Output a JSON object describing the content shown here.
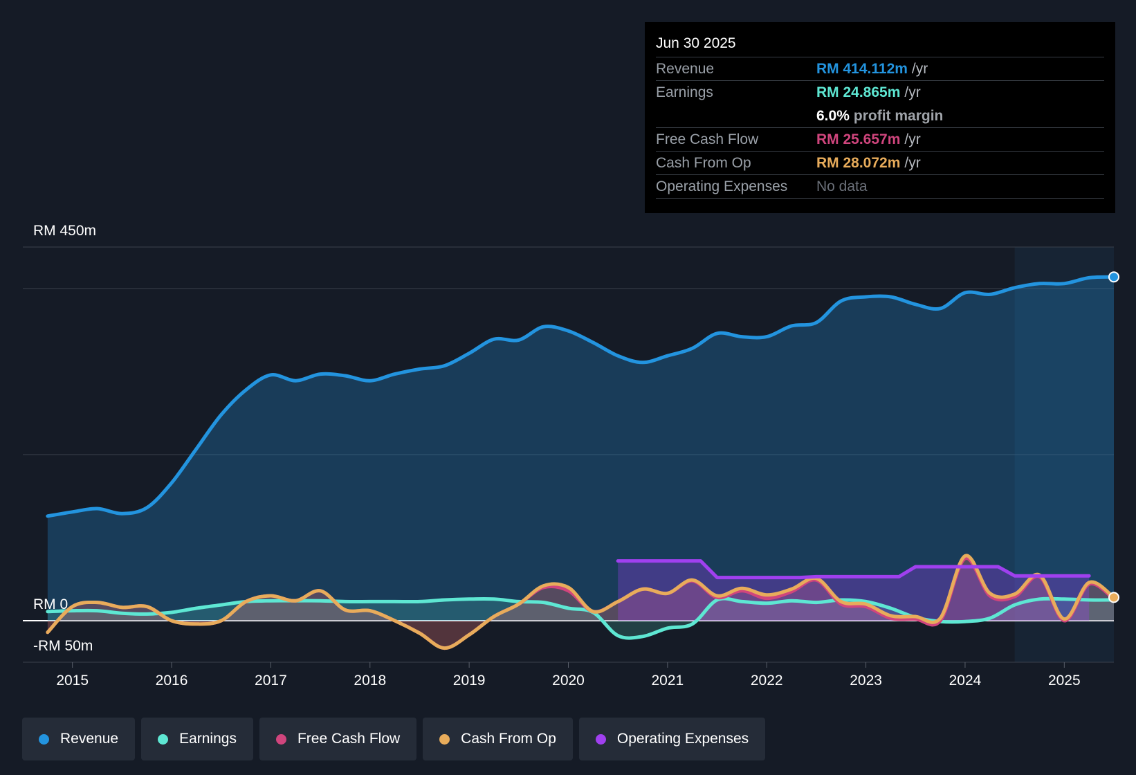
{
  "colors": {
    "background": "#151b26",
    "revenue": "#2394df",
    "earnings": "#5ee7d3",
    "free_cash_flow": "#d0457d",
    "cash_from_op": "#e8ac5b",
    "operating_expenses": "#a040ef",
    "grid": "#3a404c"
  },
  "tooltip": {
    "date": "Jun 30 2025",
    "rows": [
      {
        "label": "Revenue",
        "value": "RM 414.112m",
        "unit": "/yr",
        "color": "#2394df"
      },
      {
        "label": "Earnings",
        "value": "RM 24.865m",
        "unit": "/yr",
        "color": "#5ee7d3"
      },
      {
        "label": "",
        "value": "6.0%",
        "unit": "profit margin",
        "color": "#ffffff"
      },
      {
        "label": "Free Cash Flow",
        "value": "RM 25.657m",
        "unit": "/yr",
        "color": "#d0457d"
      },
      {
        "label": "Cash From Op",
        "value": "RM 28.072m",
        "unit": "/yr",
        "color": "#e8ac5b"
      },
      {
        "label": "Operating Expenses",
        "value": "No data",
        "unit": "",
        "color": "#6b7079"
      }
    ]
  },
  "legend": [
    {
      "label": "Revenue",
      "color": "#2394df"
    },
    {
      "label": "Earnings",
      "color": "#5ee7d3"
    },
    {
      "label": "Free Cash Flow",
      "color": "#d0457d"
    },
    {
      "label": "Cash From Op",
      "color": "#e8ac5b"
    },
    {
      "label": "Operating Expenses",
      "color": "#a040ef"
    }
  ],
  "chart_data": {
    "type": "line",
    "y_axis_labels": {
      "top": "RM 450m",
      "zero": "RM 0",
      "bottom": "-RM 50m"
    },
    "ylim": [
      -50,
      450
    ],
    "xlim": [
      2014.5,
      2025.5
    ],
    "gridlines": [
      -50,
      0,
      200,
      400,
      450
    ],
    "x_ticks": [
      2015,
      2016,
      2017,
      2018,
      2019,
      2020,
      2021,
      2022,
      2023,
      2024,
      2025
    ],
    "x_tick_labels": [
      "2015",
      "2016",
      "2017",
      "2018",
      "2019",
      "2020",
      "2021",
      "2022",
      "2023",
      "2024",
      "2025"
    ],
    "forecast_shade_start": 2024.5,
    "series": [
      {
        "name": "Revenue",
        "x": [
          2014.75,
          2015.0,
          2015.25,
          2015.5,
          2015.75,
          2016.0,
          2016.25,
          2016.5,
          2016.75,
          2017.0,
          2017.25,
          2017.5,
          2017.75,
          2018.0,
          2018.25,
          2018.5,
          2018.75,
          2019.0,
          2019.25,
          2019.5,
          2019.75,
          2020.0,
          2020.25,
          2020.5,
          2020.75,
          2021.0,
          2021.25,
          2021.5,
          2021.75,
          2022.0,
          2022.25,
          2022.5,
          2022.75,
          2023.0,
          2023.25,
          2023.5,
          2023.75,
          2024.0,
          2024.25,
          2024.5,
          2024.75,
          2025.0,
          2025.25,
          2025.5
        ],
        "values": [
          126,
          131,
          135,
          129,
          136,
          166,
          207,
          248,
          278,
          296,
          289,
          297,
          295,
          289,
          297,
          303,
          307,
          322,
          339,
          338,
          354,
          349,
          335,
          319,
          311,
          319,
          328,
          346,
          342,
          342,
          355,
          359,
          385,
          390,
          390,
          381,
          376,
          395,
          393,
          401,
          406,
          406,
          413,
          414
        ]
      },
      {
        "name": "Earnings",
        "x": [
          2014.75,
          2015.0,
          2015.25,
          2015.5,
          2015.75,
          2016.0,
          2016.25,
          2016.5,
          2016.75,
          2017.0,
          2017.25,
          2017.5,
          2017.75,
          2018.0,
          2018.25,
          2018.5,
          2018.75,
          2019.0,
          2019.25,
          2019.5,
          2019.75,
          2020.0,
          2020.25,
          2020.5,
          2020.75,
          2021.0,
          2021.25,
          2021.5,
          2021.75,
          2022.0,
          2022.25,
          2022.5,
          2022.75,
          2023.0,
          2023.25,
          2023.5,
          2023.75,
          2024.0,
          2024.25,
          2024.5,
          2024.75,
          2025.0,
          2025.25,
          2025.5
        ],
        "values": [
          11,
          12,
          12,
          9,
          8,
          10,
          15,
          19,
          23,
          24,
          24,
          24,
          23,
          23,
          23,
          23,
          25,
          26,
          26,
          23,
          22,
          15,
          10,
          -18,
          -19,
          -9,
          -4,
          25,
          23,
          21,
          24,
          22,
          25,
          23,
          15,
          4,
          -1,
          -1,
          3,
          19,
          26,
          26,
          25,
          25
        ]
      },
      {
        "name": "Free Cash Flow",
        "x": [
          2014.75,
          2015.0,
          2015.25,
          2015.5,
          2015.75,
          2016.0,
          2016.25,
          2016.5,
          2016.75,
          2017.0,
          2017.25,
          2017.5,
          2017.75,
          2018.0,
          2018.25,
          2018.5,
          2018.75,
          2019.0,
          2019.25,
          2019.5,
          2019.75,
          2020.0,
          2020.25,
          2020.5,
          2020.75,
          2021.0,
          2021.25,
          2021.5,
          2021.75,
          2022.0,
          2022.25,
          2022.5,
          2022.75,
          2023.0,
          2023.25,
          2023.5,
          2023.75,
          2024.0,
          2024.25,
          2024.5,
          2024.75,
          2025.0,
          2025.25,
          2025.5
        ],
        "values": [
          -14,
          17,
          22,
          16,
          17,
          0,
          -4,
          0,
          23,
          30,
          24,
          36,
          13,
          12,
          0,
          -15,
          -33,
          -17,
          5,
          20,
          40,
          36,
          11,
          23,
          38,
          33,
          48,
          28,
          36,
          27,
          35,
          49,
          20,
          17,
          3,
          2,
          0,
          75,
          30,
          29,
          53,
          0,
          44,
          26
        ]
      },
      {
        "name": "Cash From Op",
        "x": [
          2014.75,
          2015.0,
          2015.25,
          2015.5,
          2015.75,
          2016.0,
          2016.25,
          2016.5,
          2016.75,
          2017.0,
          2017.25,
          2017.5,
          2017.75,
          2018.0,
          2018.25,
          2018.5,
          2018.75,
          2019.0,
          2019.25,
          2019.5,
          2019.75,
          2020.0,
          2020.25,
          2020.5,
          2020.75,
          2021.0,
          2021.25,
          2021.5,
          2021.75,
          2022.0,
          2022.25,
          2022.5,
          2022.75,
          2023.0,
          2023.25,
          2023.5,
          2023.75,
          2024.0,
          2024.25,
          2024.5,
          2024.75,
          2025.0,
          2025.25,
          2025.5
        ],
        "values": [
          -14,
          17,
          22,
          16,
          17,
          0,
          -4,
          0,
          23,
          30,
          24,
          36,
          13,
          12,
          0,
          -15,
          -33,
          -17,
          5,
          20,
          42,
          40,
          11,
          23,
          38,
          33,
          49,
          30,
          39,
          31,
          38,
          51,
          23,
          20,
          6,
          5,
          3,
          78,
          33,
          32,
          55,
          2,
          46,
          28
        ]
      },
      {
        "name": "Operating Expenses",
        "x": [
          2020.5,
          2020.75,
          2021.0,
          2021.25,
          2021.5,
          2021.75,
          2022.0,
          2022.25,
          2022.5,
          2022.75,
          2023.0,
          2023.25,
          2023.5,
          2023.75,
          2024.0,
          2024.25,
          2024.5,
          2024.75,
          2025.0,
          2025.25
        ],
        "values": [
          72,
          72,
          72,
          72,
          52,
          52,
          52,
          52,
          53,
          53,
          53,
          53,
          65,
          65,
          65,
          65,
          54,
          54,
          54,
          54
        ]
      }
    ]
  }
}
